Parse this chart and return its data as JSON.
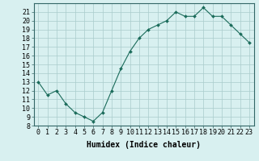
{
  "x": [
    0,
    1,
    2,
    3,
    4,
    5,
    6,
    7,
    8,
    9,
    10,
    11,
    12,
    13,
    14,
    15,
    16,
    17,
    18,
    19,
    20,
    21,
    22,
    23
  ],
  "y": [
    13,
    11.5,
    12,
    10.5,
    9.5,
    9,
    8.5,
    9.5,
    12,
    14.5,
    16.5,
    18,
    19,
    19.5,
    20,
    21,
    20.5,
    20.5,
    21.5,
    20.5,
    20.5,
    19.5,
    18.5,
    17.5
  ],
  "line_color": "#1a6b5a",
  "marker": "D",
  "marker_size": 2.0,
  "bg_color": "#d8f0f0",
  "grid_color": "#aacccc",
  "xlabel": "Humidex (Indice chaleur)",
  "xlim": [
    -0.5,
    23.5
  ],
  "ylim": [
    8,
    22
  ],
  "xticks": [
    0,
    1,
    2,
    3,
    4,
    5,
    6,
    7,
    8,
    9,
    10,
    11,
    12,
    13,
    14,
    15,
    16,
    17,
    18,
    19,
    20,
    21,
    22,
    23
  ],
  "yticks": [
    8,
    9,
    10,
    11,
    12,
    13,
    14,
    15,
    16,
    17,
    18,
    19,
    20,
    21
  ],
  "xlabel_fontsize": 7,
  "tick_fontsize": 6
}
